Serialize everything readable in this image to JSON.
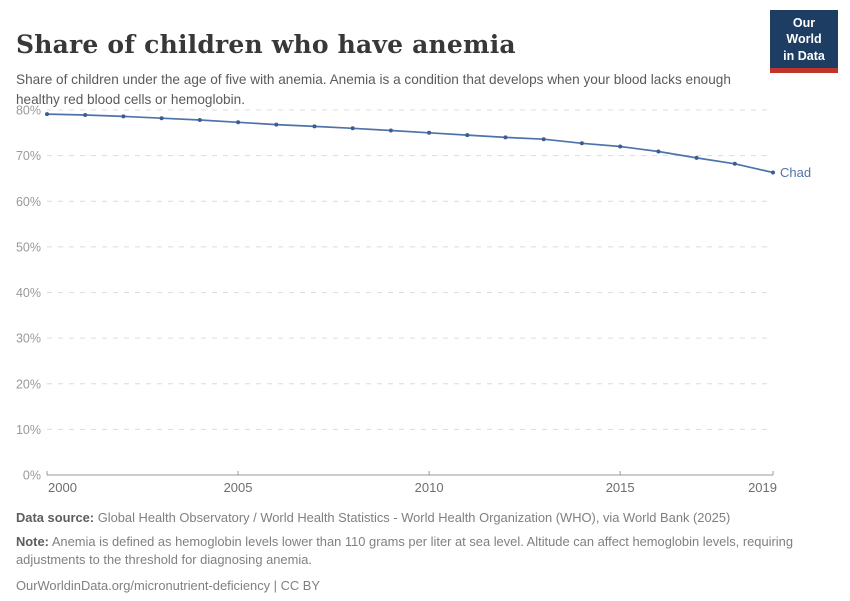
{
  "header": {
    "title": "Share of children who have anemia",
    "subtitle": "Share of children under the age of five with anemia. Anemia is a condition that develops when your blood lacks enough healthy red blood cells or hemoglobin."
  },
  "logo": {
    "line1": "Our World",
    "line2": "in Data"
  },
  "chart_data": {
    "type": "line",
    "title": "Share of children who have anemia",
    "x": [
      2000,
      2001,
      2002,
      2003,
      2004,
      2005,
      2006,
      2007,
      2008,
      2009,
      2010,
      2011,
      2012,
      2013,
      2014,
      2015,
      2016,
      2017,
      2018,
      2019
    ],
    "series": [
      {
        "name": "Chad",
        "values": [
          79.1,
          78.9,
          78.6,
          78.2,
          77.8,
          77.3,
          76.8,
          76.4,
          76.0,
          75.5,
          75.0,
          74.5,
          74.0,
          73.6,
          72.7,
          72.0,
          70.9,
          69.5,
          68.2,
          66.3
        ]
      }
    ],
    "xlabel": "",
    "ylabel": "",
    "ylim": [
      0,
      80
    ],
    "yticks": [
      0,
      10,
      20,
      30,
      40,
      50,
      60,
      70,
      80
    ],
    "ytick_suffix": "%",
    "xticks": [
      2000,
      2005,
      2010,
      2015,
      2019
    ],
    "grid": "horizontal-dashed",
    "legend_position": "end-of-line-label",
    "entity_label": "Chad"
  },
  "footer": {
    "data_source_label": "Data source:",
    "data_source": "Global Health Observatory / World Health Statistics - World Health Organization (WHO), via World Bank (2025)",
    "note_label": "Note:",
    "note": "Anemia is defined as hemoglobin levels lower than 110 grams per liter at sea level. Altitude can affect hemoglobin levels, requiring adjustments to the threshold for diagnosing anemia.",
    "license_line": "OurWorldinData.org/micronutrient-deficiency | CC BY"
  },
  "colors": {
    "line": "#4e73aa",
    "dot": "#3c5d92",
    "entity_label": "#4e73aa",
    "grid": "#dcdcdc",
    "axis": "#999999",
    "ytick_text": "#999999",
    "xtick_text": "#6e6e6e",
    "logo_bg": "#1d3d63",
    "logo_accent": "#c0352b"
  }
}
